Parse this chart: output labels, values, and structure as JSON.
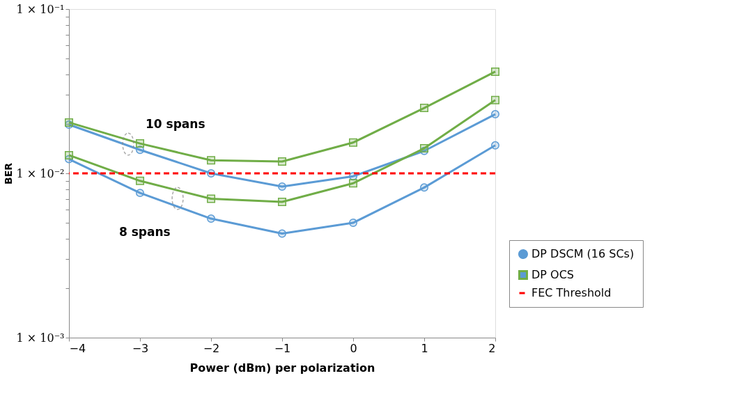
{
  "chart_data": {
    "type": "line",
    "xlabel": "Power (dBm) per polarization",
    "ylabel": "BER",
    "log": "y",
    "x": [
      -4,
      -3,
      -2,
      -1,
      0,
      1,
      2
    ],
    "series": [
      {
        "name": "DP DSCM (16 SCs)",
        "color": "#5b9bd5",
        "marker": "circle",
        "values": [
          0.0198,
          0.0139,
          0.01,
          0.0083,
          0.0096,
          0.0137,
          0.0229
        ]
      },
      {
        "color": "#5b9bd5",
        "marker": "circle",
        "values": [
          0.0122,
          0.0076,
          0.0053,
          0.0043,
          0.005,
          0.0082,
          0.0148
        ]
      },
      {
        "name": "DP OCS",
        "color": "#70ad47",
        "marker": "square",
        "values": [
          0.0204,
          0.0152,
          0.012,
          0.0118,
          0.0154,
          0.025,
          0.0416
        ]
      },
      {
        "color": "#70ad47",
        "marker": "square",
        "values": [
          0.0129,
          0.009,
          0.007,
          0.0067,
          0.0087,
          0.0142,
          0.0279
        ]
      }
    ],
    "ref_lines": [
      {
        "axis": "y",
        "value": 0.01,
        "label": "FEC Threshold",
        "color": "#ff0000",
        "line_style": "dashed"
      }
    ],
    "annotations": [
      "10 spans",
      "8 spans"
    ],
    "xlim": [
      -4,
      2
    ],
    "xticks": [
      {
        "value": -4,
        "label": "−4"
      },
      {
        "value": -3,
        "label": "−3"
      },
      {
        "value": -2,
        "label": "−2"
      },
      {
        "value": -1,
        "label": "−1"
      },
      0,
      1,
      2
    ],
    "ylim": [
      0.001,
      0.1
    ],
    "yticks": [
      {
        "value": 0.001,
        "label": "1 × 10⁻³"
      },
      {
        "value": 0.002,
        "label": null
      },
      {
        "value": 0.003,
        "label": null
      },
      {
        "value": 0.004,
        "label": null
      },
      {
        "value": 0.005,
        "label": null
      },
      {
        "value": 0.006,
        "label": null
      },
      {
        "value": 0.007,
        "label": null
      },
      {
        "value": 0.008,
        "label": null
      },
      {
        "value": 0.009,
        "label": null
      },
      {
        "value": 0.01,
        "label": "1 × 10⁻²"
      },
      {
        "value": 0.02,
        "label": null
      },
      {
        "value": 0.03,
        "label": null
      },
      {
        "value": 0.04,
        "label": null
      },
      {
        "value": 0.05,
        "label": null
      },
      {
        "value": 0.06,
        "label": null
      },
      {
        "value": 0.07,
        "label": null
      },
      {
        "value": 0.08,
        "label": null
      },
      {
        "value": 0.09,
        "label": null
      },
      {
        "value": 0.1,
        "label": "1 × 10⁻¹"
      }
    ],
    "grid": false,
    "legend": "right",
    "line_style": "solid"
  }
}
